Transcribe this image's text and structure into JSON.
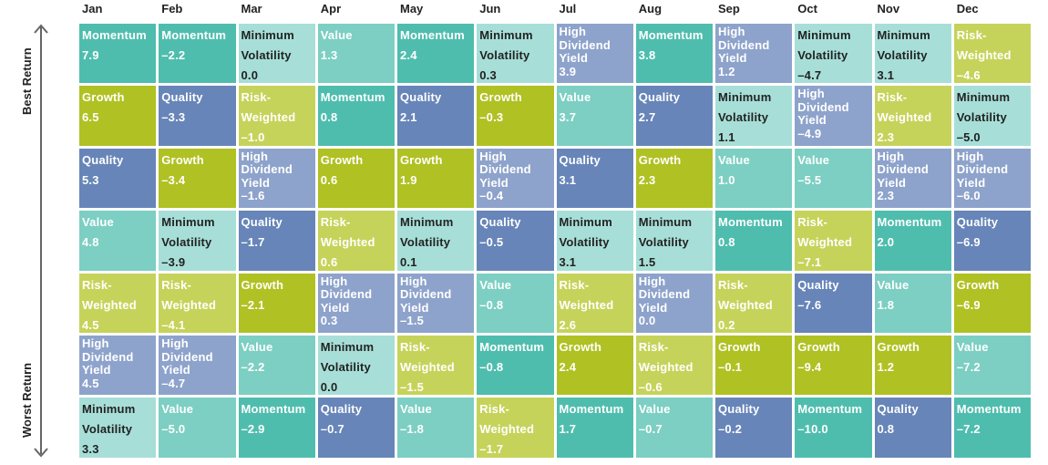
{
  "chart_data": {
    "type": "table",
    "title": "",
    "axis": {
      "top_label": "Best Return",
      "bottom_label": "Worst Return"
    },
    "colors": {
      "Momentum": "#4fbdae",
      "Value": "#7ccfc2",
      "Minimum Volatility": "#a7dfd8",
      "Quality": "#6785b8",
      "Growth": "#b0c123",
      "Risk-Weighted": "#c6d35a",
      "High Dividend Yield": "#8ea3cb"
    },
    "months": [
      {
        "name": "Jan",
        "ranks": [
          [
            "Momentum",
            "7.9"
          ],
          [
            "Growth",
            "6.5"
          ],
          [
            "Quality",
            "5.3"
          ],
          [
            "Value",
            "4.8"
          ],
          [
            "Risk-Weighted",
            "4.5"
          ],
          [
            "High Dividend Yield",
            "4.5"
          ],
          [
            "Minimum Volatility",
            "3.3"
          ]
        ]
      },
      {
        "name": "Feb",
        "ranks": [
          [
            "Momentum",
            "–2.2"
          ],
          [
            "Quality",
            "–3.3"
          ],
          [
            "Growth",
            "–3.4"
          ],
          [
            "Minimum Volatility",
            "–3.9"
          ],
          [
            "Risk-Weighted",
            "–4.1"
          ],
          [
            "High Dividend Yield",
            "–4.7"
          ],
          [
            "Value",
            "–5.0"
          ]
        ]
      },
      {
        "name": "Mar",
        "ranks": [
          [
            "Minimum Volatility",
            "0.0"
          ],
          [
            "Risk-Weighted",
            "–1.0"
          ],
          [
            "High Dividend Yield",
            "–1.6"
          ],
          [
            "Quality",
            "–1.7"
          ],
          [
            "Growth",
            "–2.1"
          ],
          [
            "Value",
            "–2.2"
          ],
          [
            "Momentum",
            "–2.9"
          ]
        ]
      },
      {
        "name": "Apr",
        "ranks": [
          [
            "Value",
            "1.3"
          ],
          [
            "Momentum",
            "0.8"
          ],
          [
            "Growth",
            "0.6"
          ],
          [
            "Risk-Weighted",
            "0.6"
          ],
          [
            "High Dividend Yield",
            "0.3"
          ],
          [
            "Minimum Volatility",
            "0.0"
          ],
          [
            "Quality",
            "–0.7"
          ]
        ]
      },
      {
        "name": "May",
        "ranks": [
          [
            "Momentum",
            "2.4"
          ],
          [
            "Quality",
            "2.1"
          ],
          [
            "Growth",
            "1.9"
          ],
          [
            "Minimum Volatility",
            "0.1"
          ],
          [
            "High Dividend Yield",
            "–1.5"
          ],
          [
            "Risk-Weighted",
            "–1.5"
          ],
          [
            "Value",
            "–1.8"
          ]
        ]
      },
      {
        "name": "Jun",
        "ranks": [
          [
            "Minimum Volatility",
            "0.3"
          ],
          [
            "Growth",
            "–0.3"
          ],
          [
            "High Dividend Yield",
            "–0.4"
          ],
          [
            "Quality",
            "–0.5"
          ],
          [
            "Value",
            "–0.8"
          ],
          [
            "Momentum",
            "–0.8"
          ],
          [
            "Risk-Weighted",
            "–1.7"
          ]
        ]
      },
      {
        "name": "Jul",
        "ranks": [
          [
            "High Dividend Yield",
            "3.9"
          ],
          [
            "Value",
            "3.7"
          ],
          [
            "Quality",
            "3.1"
          ],
          [
            "Minimum Volatility",
            "3.1"
          ],
          [
            "Risk-Weighted",
            "2.6"
          ],
          [
            "Growth",
            "2.4"
          ],
          [
            "Momentum",
            "1.7"
          ]
        ]
      },
      {
        "name": "Aug",
        "ranks": [
          [
            "Momentum",
            "3.8"
          ],
          [
            "Quality",
            "2.7"
          ],
          [
            "Growth",
            "2.3"
          ],
          [
            "Minimum Volatility",
            "1.5"
          ],
          [
            "High Dividend Yield",
            "0.0"
          ],
          [
            "Risk-Weighted",
            "–0.6"
          ],
          [
            "Value",
            "–0.7"
          ]
        ]
      },
      {
        "name": "Sep",
        "ranks": [
          [
            "High Dividend Yield",
            "1.2"
          ],
          [
            "Minimum Volatility",
            "1.1"
          ],
          [
            "Value",
            "1.0"
          ],
          [
            "Momentum",
            "0.8"
          ],
          [
            "Risk-Weighted",
            "0.2"
          ],
          [
            "Growth",
            "–0.1"
          ],
          [
            "Quality",
            "–0.2"
          ]
        ]
      },
      {
        "name": "Oct",
        "ranks": [
          [
            "Minimum Volatility",
            "–4.7"
          ],
          [
            "High Dividend Yield",
            "–4.9"
          ],
          [
            "Value",
            "–5.5"
          ],
          [
            "Risk-Weighted",
            "–7.1"
          ],
          [
            "Quality",
            "–7.6"
          ],
          [
            "Growth",
            "–9.4"
          ],
          [
            "Momentum",
            "–10.0"
          ]
        ]
      },
      {
        "name": "Nov",
        "ranks": [
          [
            "Minimum Volatility",
            "3.1"
          ],
          [
            "Risk-Weighted",
            "2.3"
          ],
          [
            "High Dividend Yield",
            "2.3"
          ],
          [
            "Momentum",
            "2.0"
          ],
          [
            "Value",
            "1.8"
          ],
          [
            "Growth",
            "1.2"
          ],
          [
            "Quality",
            "0.8"
          ]
        ]
      },
      {
        "name": "Dec",
        "ranks": [
          [
            "Risk-Weighted",
            "–4.6"
          ],
          [
            "Minimum Volatility",
            "–5.0"
          ],
          [
            "High Dividend Yield",
            "–6.0"
          ],
          [
            "Quality",
            "–6.9"
          ],
          [
            "Growth",
            "–6.9"
          ],
          [
            "Value",
            "–7.2"
          ],
          [
            "Momentum",
            "–7.2"
          ]
        ]
      }
    ]
  }
}
